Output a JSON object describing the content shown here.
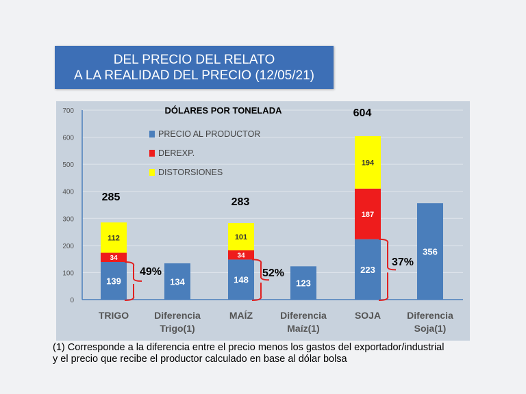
{
  "header": {
    "title_line1": "DEL PRECIO DEL RELATO",
    "title_line2": "A LA REALIDAD DEL  PRECIO (12/05/21)"
  },
  "footnote": {
    "line1": "(1)   Corresponde a la diferencia entre el precio menos los gastos del exportador/industrial",
    "line2": "y el precio que recibe el productor calculado en base al dólar bolsa"
  },
  "chart_data": {
    "type": "bar",
    "stacked": true,
    "title": "DÓLARES POR TONELADA",
    "categories": [
      "TRIGO",
      "Diferencia Trigo(1)",
      "MAÍZ",
      "Diferencia Maíz(1)",
      "SOJA",
      "Diferencia Soja(1)"
    ],
    "series": [
      {
        "name": "PRECIO AL PRODUCTOR",
        "color": "#4a7ebb",
        "values": [
          139,
          134,
          148,
          123,
          223,
          356
        ]
      },
      {
        "name": "DEREXP.",
        "color": "#ee1c1c",
        "values": [
          34,
          null,
          34,
          null,
          187,
          null
        ]
      },
      {
        "name": "DISTORSIONES",
        "color": "#ffff00",
        "values": [
          112,
          null,
          101,
          null,
          194,
          null
        ]
      }
    ],
    "totals": [
      285,
      null,
      283,
      null,
      604,
      null
    ],
    "annotations": [
      {
        "category": "TRIGO",
        "text": "49%"
      },
      {
        "category": "MAÍZ",
        "text": "52%"
      },
      {
        "category": "SOJA",
        "text": "37%"
      }
    ],
    "ylim": [
      0,
      700
    ],
    "yticks": [
      0,
      100,
      200,
      300,
      400,
      500,
      600,
      700
    ],
    "grid": true,
    "legend": "top-center"
  }
}
